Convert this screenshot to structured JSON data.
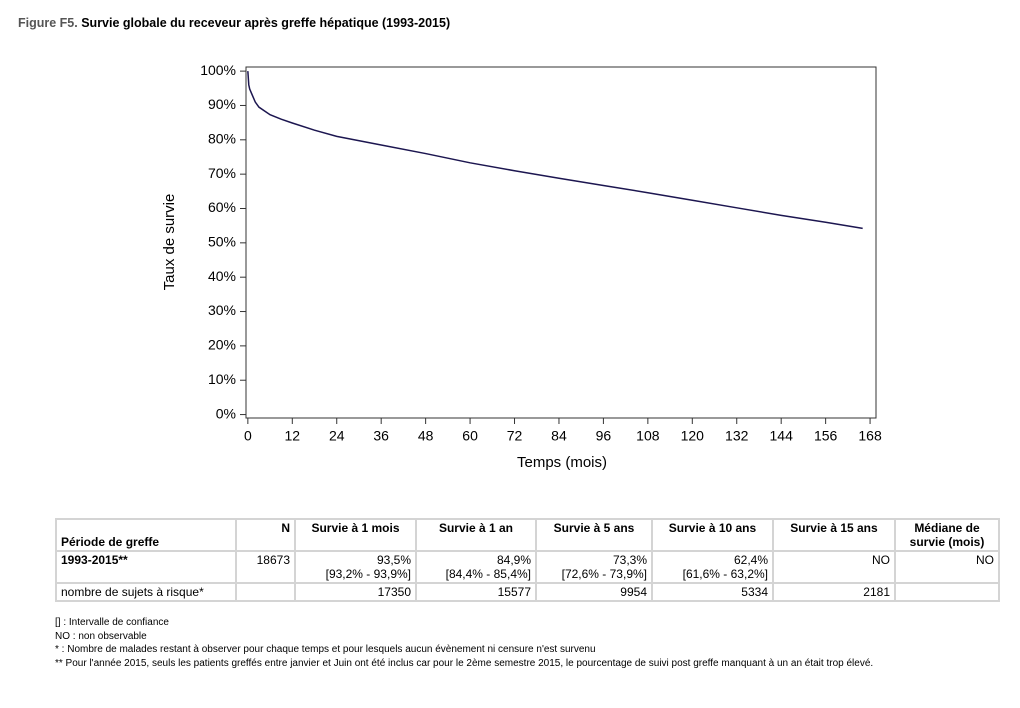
{
  "figure": {
    "label": "Figure F5.",
    "title": "Survie globale du receveur après greffe hépatique (1993-2015)"
  },
  "chart_data": {
    "type": "line",
    "x_label": "Temps (mois)",
    "y_label": "Taux de survie",
    "x": [
      0,
      0.25,
      0.5,
      1,
      2,
      3,
      6,
      9,
      12,
      18,
      24,
      36,
      48,
      60,
      72,
      84,
      96,
      108,
      120,
      132,
      144,
      156,
      166
    ],
    "series": [
      {
        "color": "#1c1650",
        "values": [
          100,
          96,
          94.8,
          93.5,
          91,
          89.5,
          87.3,
          86,
          84.9,
          82.8,
          81,
          78.5,
          76,
          73.3,
          71,
          68.8,
          66.7,
          64.6,
          62.4,
          60.2,
          58,
          56,
          54.2
        ]
      }
    ],
    "xlim": [
      -0.5,
      169.6
    ],
    "ylim": [
      -1,
      101.2
    ],
    "xticks": [
      0,
      12,
      24,
      36,
      48,
      60,
      72,
      84,
      96,
      108,
      120,
      132,
      144,
      156,
      168
    ],
    "yticks": [
      {
        "value": 0,
        "label": "0%"
      },
      {
        "value": 10,
        "label": "10%"
      },
      {
        "value": 20,
        "label": "20%"
      },
      {
        "value": 30,
        "label": "30%"
      },
      {
        "value": 40,
        "label": "40%"
      },
      {
        "value": 50,
        "label": "50%"
      },
      {
        "value": 60,
        "label": "60%"
      },
      {
        "value": 70,
        "label": "70%"
      },
      {
        "value": 80,
        "label": "80%"
      },
      {
        "value": 90,
        "label": "90%"
      },
      {
        "value": 100,
        "label": "100%"
      }
    ]
  },
  "table": {
    "header": [
      "Période de greffe",
      "N",
      "Survie à 1 mois",
      "Survie à 1 an",
      "Survie à 5 ans",
      "Survie à 10 ans",
      "Survie à 15 ans",
      "Médiane de survie (mois)"
    ],
    "rows": [
      [
        "1993-2015**",
        "18673",
        [
          "93,5%",
          "[93,2% - 93,9%]"
        ],
        [
          "84,9%",
          "[84,4% - 85,4%]"
        ],
        [
          "73,3%",
          "[72,6% - 73,9%]"
        ],
        [
          "62,4%",
          "[61,6% - 63,2%]"
        ],
        "NO",
        "NO"
      ],
      [
        "nombre de sujets à risque*",
        null,
        "17350",
        "15577",
        "9954",
        "5334",
        "2181",
        null
      ]
    ]
  },
  "notes": [
    "[] : Intervalle de confiance",
    "NO : non observable",
    "* : Nombre de malades restant à observer pour chaque temps et pour lesquels aucun évènement ni censure n'est survenu",
    "** Pour l'année  2015, seuls les patients greffés entre janvier et Juin ont été inclus car pour le 2ème semestre 2015, le pourcentage de suivi post greffe manquant à un an était trop élevé."
  ]
}
